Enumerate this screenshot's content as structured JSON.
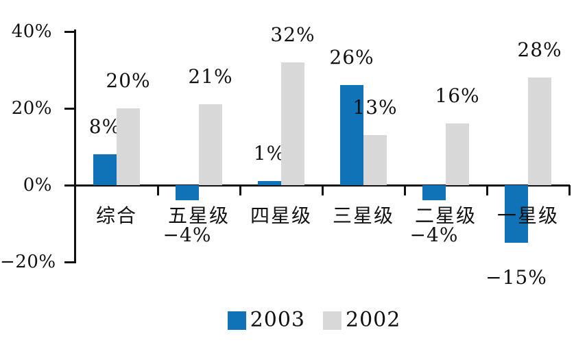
{
  "chart_data": {
    "type": "bar",
    "title": "",
    "xlabel": "",
    "ylabel": "",
    "categories": [
      "综合",
      "五星级",
      "四星级",
      "三星级",
      "二星级",
      "一星级"
    ],
    "series": [
      {
        "name": "2003",
        "color": "#1173B7",
        "values": [
          8,
          -4,
          1,
          26,
          -4,
          -15
        ],
        "labels": [
          "8%",
          "−4%",
          "1%",
          "26%",
          "−4%",
          "−15%"
        ]
      },
      {
        "name": "2002",
        "color": "#D8D8D8",
        "values": [
          20,
          21,
          32,
          13,
          16,
          28
        ],
        "labels": [
          "20%",
          "21%",
          "32%",
          "13%",
          "16%",
          "28%"
        ]
      }
    ],
    "y_axis": {
      "min": -20,
      "max": 40,
      "ticks": [
        {
          "value": 40,
          "label": "40%"
        },
        {
          "value": 20,
          "label": "20%"
        },
        {
          "value": 0,
          "label": "0%"
        },
        {
          "value": -20,
          "label": "−20%"
        }
      ]
    },
    "grid": false,
    "legend_position": "bottom",
    "colors": {
      "series_2003": "#1173B7",
      "series_2002": "#D8D8D8",
      "axis": "#111111"
    }
  }
}
